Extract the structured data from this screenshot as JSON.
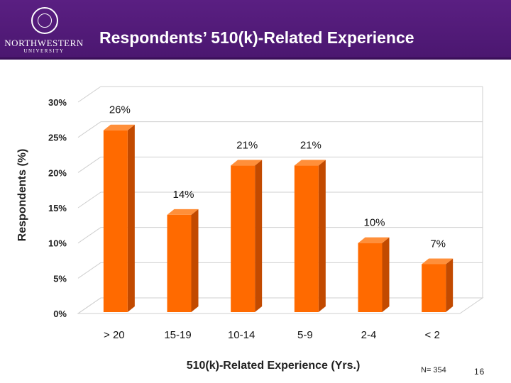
{
  "header": {
    "title": "Respondents’ 510(k)-Related Experience",
    "logo_name": "NORTHWESTERN",
    "logo_sub": "UNIVERSITY"
  },
  "chart_data": {
    "type": "bar",
    "title": "Respondents’ 510(k)-Related Experience",
    "xlabel": "510(k)-Related Experience (Yrs.)",
    "ylabel": "Respondents (%)",
    "categories": [
      "> 20",
      "15-19",
      "10-14",
      "5-9",
      "2-4",
      "< 2"
    ],
    "values": [
      26,
      14,
      21,
      21,
      10,
      7
    ],
    "data_labels": [
      "26%",
      "14%",
      "21%",
      "21%",
      "10%",
      "7%"
    ],
    "ylim": [
      0,
      30
    ],
    "yticks": [
      0,
      5,
      10,
      15,
      20,
      25,
      30
    ],
    "ytick_labels": [
      "0%",
      "5%",
      "10%",
      "15%",
      "20%",
      "25%",
      "30%"
    ],
    "grid": true,
    "bar_color": "#ff6a00",
    "bar_side_color": "#c24a00",
    "bar_top_color": "#ff8f3a"
  },
  "footer": {
    "n_label": "N= 354",
    "page_number": "16"
  }
}
